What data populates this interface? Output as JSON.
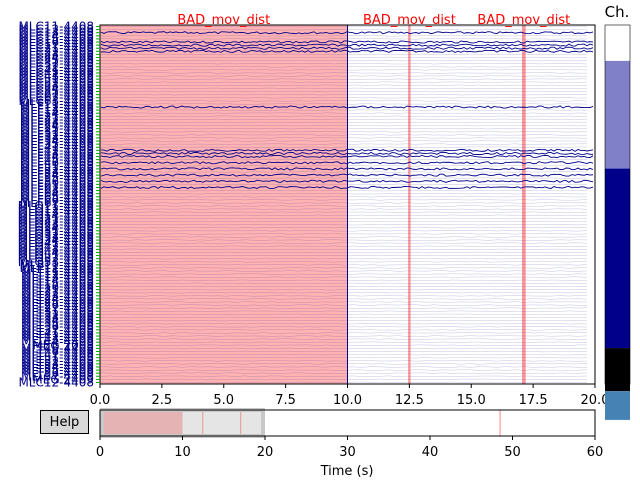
{
  "help_button": {
    "label": "Help"
  },
  "scrollbar_title": "Ch.",
  "annotations": [
    {
      "description": "BAD_mov_dist",
      "onset": 0.0,
      "duration": 10.0,
      "selected": true
    },
    {
      "description": "BAD_mov_dist",
      "onset": 12.45,
      "duration": 0.1
    },
    {
      "description": "BAD_mov_dist",
      "onset": 17.05,
      "duration": 0.15
    }
  ],
  "data_view": {
    "x_range": [
      0.0,
      20.0
    ],
    "x_ticks": [
      "0.0",
      "2.5",
      "5.0",
      "7.5",
      "10.0",
      "12.5",
      "15.0",
      "17.5",
      "20.0"
    ],
    "cursor_line_at": 10.0
  },
  "overview": {
    "x_range": [
      0,
      60
    ],
    "x_ticks": [
      "0",
      "10",
      "20",
      "30",
      "40",
      "50",
      "60"
    ],
    "xlabel": "Time (s)",
    "window": [
      0,
      20
    ],
    "annotation_marks": [
      12.45,
      17.05,
      48.5
    ]
  },
  "channel_labels": [
    "MLC11-4408",
    "MLC12-4408",
    "MLC13-4408",
    "MLC14-4408",
    "MLC15-4408",
    "MLC16-4408",
    "MLC17-4408",
    "MLC21-4408",
    "MLC22-4408",
    "MLC23-4408",
    "MLC24-4408",
    "MLC25-4408",
    "MLC31-4408",
    "MLC32-4408",
    "MLC41-4408",
    "MLC42-4408",
    "MLC43-4408",
    "MLC51-4408",
    "MLC52-4408",
    "MLC53-4408",
    "MLC54-4408",
    "MLC55-4408",
    "MLC61-4408",
    "MLC62-4408",
    "MLC63-4408",
    "MLF11-4408",
    "MLF12-4408",
    "MLF13-4408",
    "MLF14-4408",
    "MLF21-4408",
    "MLF22-4408",
    "MLF23-4408",
    "MLF24-4408",
    "MLF25-4408",
    "MLF31-4408",
    "MLF32-4408",
    "MLF33-4408",
    "MLF34-4408",
    "MLF35-4408",
    "MLF41-4408",
    "MLF42-4408",
    "MLF43-4408",
    "MLF44-4408",
    "MLF45-4408",
    "MLF46-4408",
    "MLF51-4408",
    "MLF52-4408",
    "MLF53-4408",
    "MLF54-4408",
    "MLF55-4408",
    "MLF56-4408",
    "MLF61-4408",
    "MLF62-4408",
    "MLF63-4408",
    "MLF64-4408",
    "MLF65-4408",
    "MLF66-4408",
    "MLF67-4408",
    "MLO11-4408",
    "MLO12-4408",
    "MLO13-4408",
    "MLO14-4408",
    "MLO21-4408",
    "MLO22-4408",
    "MLO23-4408",
    "MLO24-4408",
    "MLO31-4408",
    "MLO32-4408",
    "MLO33-4408",
    "MLO34-4408",
    "MLO41-4408",
    "MLO42-4408",
    "MLO43-4408",
    "MLO44-4408",
    "MLO51-4408",
    "MLO52-4408",
    "MLO53-4408",
    "MLP11-4408",
    "MLP12-4408",
    "MLT11-4408",
    "MLT12-4408",
    "MLT13-4408",
    "MLT14-4408",
    "MLT15-4408",
    "MLT16-4408",
    "MLT21-4408",
    "MLT22-4408",
    "MLT23-4408",
    "MLT24-4408",
    "MLT25-4408",
    "MLT26-4408",
    "MLT27-4408",
    "MLT31-4408",
    "MLT32-4408",
    "MLT33-4408",
    "MLT34-4408",
    "MLT35-4408",
    "MLT36-4408",
    "MLT37-4408",
    "MLT41-4408",
    "MLT42-4408",
    "MLT43-4408",
    "MLT44-4408",
    "MEG 2008",
    "MLT45-4408",
    "MLT46-4408",
    "MLT47-4408",
    "MLT51-4408",
    "MLT52-4408",
    "MLT53-4408",
    "MLT54-4408",
    "MLT55-4408",
    "MLT56-4408",
    "MLT57-4408",
    "MEG 2409",
    "MLC12-4408"
  ],
  "channel_scrollbar_blocks": [
    {
      "frac": 0.1,
      "color": "#ffffff"
    },
    {
      "frac": 0.3,
      "color": "#8080c8"
    },
    {
      "frac": 0.5,
      "color": "#00008b"
    },
    {
      "frac": 0.12,
      "color": "#000000"
    },
    {
      "frac": 0.08,
      "color": "#4682b4"
    }
  ],
  "colors": {
    "annotation_fill": "#ffb3b3",
    "annotation_label": "#ff0000",
    "annotation_line": "#ff9999",
    "trace": "#00008b",
    "channel_label": "#00008b",
    "tick_green": "#00aa00",
    "overview_window": "#c8c8c8"
  }
}
